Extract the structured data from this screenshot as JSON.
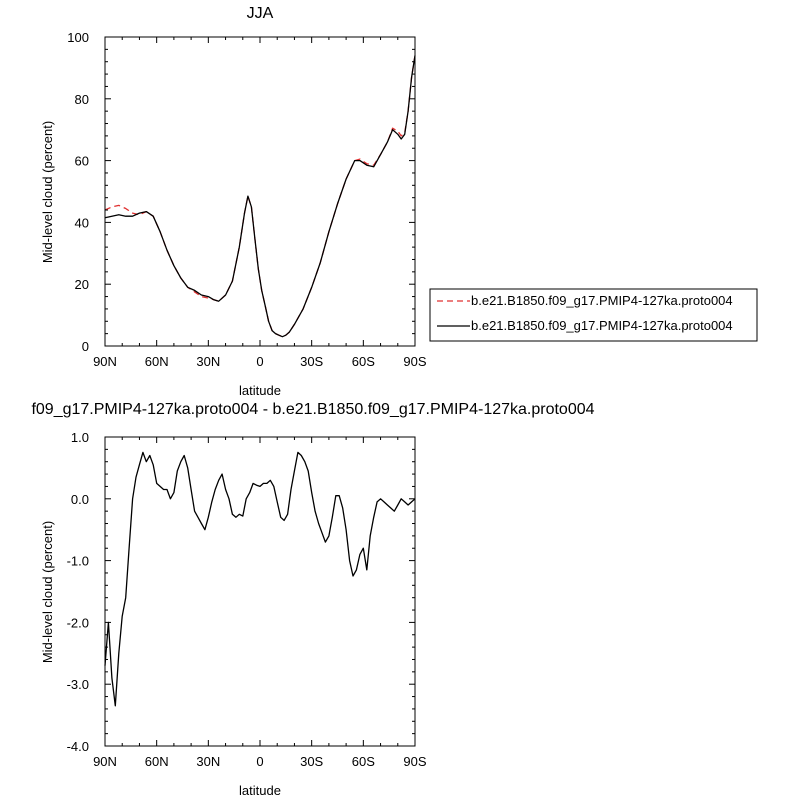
{
  "chart_data": [
    {
      "type": "line",
      "title": "JJA",
      "xlabel": "latitude",
      "ylabel": "Mid-level cloud (percent)",
      "xlim": [
        -90,
        90
      ],
      "ylim": [
        0,
        100
      ],
      "x_ticks": [
        -90,
        -60,
        -30,
        0,
        30,
        60,
        90
      ],
      "x_tick_labels": [
        "90N",
        "60N",
        "30N",
        "0",
        "30S",
        "60S",
        "90S"
      ],
      "y_ticks": [
        0,
        20,
        40,
        60,
        80,
        100
      ],
      "y_tick_labels": [
        "0",
        "20",
        "40",
        "60",
        "80",
        "100"
      ],
      "legend_position": "right",
      "series": [
        {
          "name": "b.e21.B1850.f09_g17.PMIP4-127ka.proto004",
          "color": "#e03030",
          "dash": "dashed",
          "x": [
            -90,
            -86,
            -82,
            -78,
            -74,
            -70,
            -66,
            -62,
            -58,
            -54,
            -50,
            -46,
            -42,
            -38,
            -34,
            -30,
            -27,
            -24,
            -20,
            -16,
            -12,
            -9,
            -7,
            -5,
            -3,
            -1,
            1,
            3,
            5,
            7,
            9,
            11,
            13,
            15,
            17,
            20,
            25,
            30,
            35,
            40,
            45,
            50,
            55,
            58,
            62,
            66,
            70,
            74,
            77,
            80,
            82,
            84,
            86,
            88,
            90
          ],
          "y": [
            44,
            45,
            45.5,
            44.5,
            43,
            42.5,
            43.5,
            42,
            37,
            31,
            26,
            22,
            19,
            17.5,
            16,
            15.5,
            15,
            14.5,
            16.5,
            21,
            32,
            43,
            48.5,
            45,
            35,
            25,
            18,
            13,
            8,
            5,
            4,
            3.5,
            3,
            3.5,
            4.5,
            7,
            12,
            19,
            27,
            37,
            46,
            54,
            60,
            60.5,
            59,
            58.5,
            62,
            66,
            70.5,
            69.5,
            68,
            69,
            76,
            87,
            94
          ]
        },
        {
          "name": "b.e21.B1850.f09_g17.PMIP4-127ka.proto004",
          "color": "#000000",
          "dash": "solid",
          "x": [
            -90,
            -86,
            -82,
            -78,
            -74,
            -70,
            -66,
            -62,
            -58,
            -54,
            -50,
            -46,
            -42,
            -38,
            -34,
            -30,
            -27,
            -24,
            -20,
            -16,
            -12,
            -9,
            -7,
            -5,
            -3,
            -1,
            1,
            3,
            5,
            7,
            9,
            11,
            13,
            15,
            17,
            20,
            25,
            30,
            35,
            40,
            45,
            50,
            55,
            58,
            62,
            66,
            70,
            74,
            77,
            80,
            82,
            84,
            86,
            88,
            90
          ],
          "y": [
            41.5,
            42,
            42.5,
            42,
            42,
            43,
            43.5,
            42,
            37,
            31,
            26,
            22,
            19,
            18,
            16.5,
            16,
            15,
            14.5,
            16.5,
            21,
            32,
            43,
            48.5,
            45,
            35,
            25,
            18,
            13,
            8,
            5,
            4,
            3.5,
            3,
            3.5,
            4.5,
            7,
            12,
            19,
            27,
            37,
            46,
            54,
            60,
            60,
            58.5,
            58,
            62,
            66,
            70,
            68.5,
            67,
            68.5,
            76,
            87,
            94
          ]
        }
      ]
    },
    {
      "type": "line",
      "title": "f09_g17.PMIP4-127ka.proto004 - b.e21.B1850.f09_g17.PMIP4-127ka.proto004",
      "xlabel": "latitude",
      "ylabel": "Mid-level cloud (percent)",
      "xlim": [
        -90,
        90
      ],
      "ylim": [
        -4,
        1
      ],
      "x_ticks": [
        -90,
        -60,
        -30,
        0,
        30,
        60,
        90
      ],
      "x_tick_labels": [
        "90N",
        "60N",
        "30N",
        "0",
        "30S",
        "60S",
        "90S"
      ],
      "y_ticks": [
        -4,
        -3,
        -2,
        -1,
        0,
        1
      ],
      "y_tick_labels": [
        "-4.0",
        "-3.0",
        "-2.0",
        "-1.0",
        "0.0",
        "1.0"
      ],
      "series": [
        {
          "color": "#000000",
          "x": [
            -90,
            -88,
            -86,
            -84,
            -82,
            -80,
            -78,
            -76,
            -74,
            -72,
            -70,
            -68,
            -66,
            -64,
            -62,
            -60,
            -58,
            -56,
            -54,
            -52,
            -50,
            -48,
            -46,
            -44,
            -42,
            -40,
            -38,
            -36,
            -34,
            -32,
            -30,
            -28,
            -26,
            -24,
            -22,
            -20,
            -18,
            -16,
            -14,
            -12,
            -10,
            -8,
            -6,
            -4,
            -2,
            0,
            2,
            4,
            6,
            8,
            10,
            12,
            14,
            16,
            18,
            20,
            22,
            24,
            26,
            28,
            30,
            32,
            34,
            36,
            38,
            40,
            42,
            44,
            46,
            48,
            50,
            52,
            54,
            56,
            58,
            60,
            62,
            64,
            66,
            68,
            70,
            72,
            74,
            76,
            78,
            80,
            82,
            84,
            86,
            88,
            90
          ],
          "y": [
            -2.7,
            -2.0,
            -2.9,
            -3.35,
            -2.5,
            -1.9,
            -1.6,
            -0.8,
            0.0,
            0.35,
            0.55,
            0.75,
            0.6,
            0.7,
            0.55,
            0.25,
            0.2,
            0.15,
            0.15,
            0.0,
            0.1,
            0.45,
            0.6,
            0.7,
            0.5,
            0.15,
            -0.2,
            -0.3,
            -0.4,
            -0.5,
            -0.3,
            -0.05,
            0.15,
            0.3,
            0.4,
            0.15,
            0.0,
            -0.25,
            -0.3,
            -0.25,
            -0.28,
            0.0,
            0.1,
            0.25,
            0.22,
            0.2,
            0.25,
            0.25,
            0.3,
            0.2,
            -0.05,
            -0.3,
            -0.35,
            -0.25,
            0.15,
            0.45,
            0.75,
            0.7,
            0.6,
            0.45,
            0.1,
            -0.2,
            -0.4,
            -0.55,
            -0.7,
            -0.6,
            -0.3,
            0.05,
            0.05,
            -0.15,
            -0.5,
            -1.0,
            -1.25,
            -1.15,
            -0.9,
            -0.8,
            -1.15,
            -0.6,
            -0.3,
            -0.05,
            0.0,
            -0.05,
            -0.1,
            -0.15,
            -0.2,
            -0.1,
            0.0,
            -0.05,
            -0.1,
            -0.05,
            0.0
          ]
        }
      ]
    }
  ]
}
